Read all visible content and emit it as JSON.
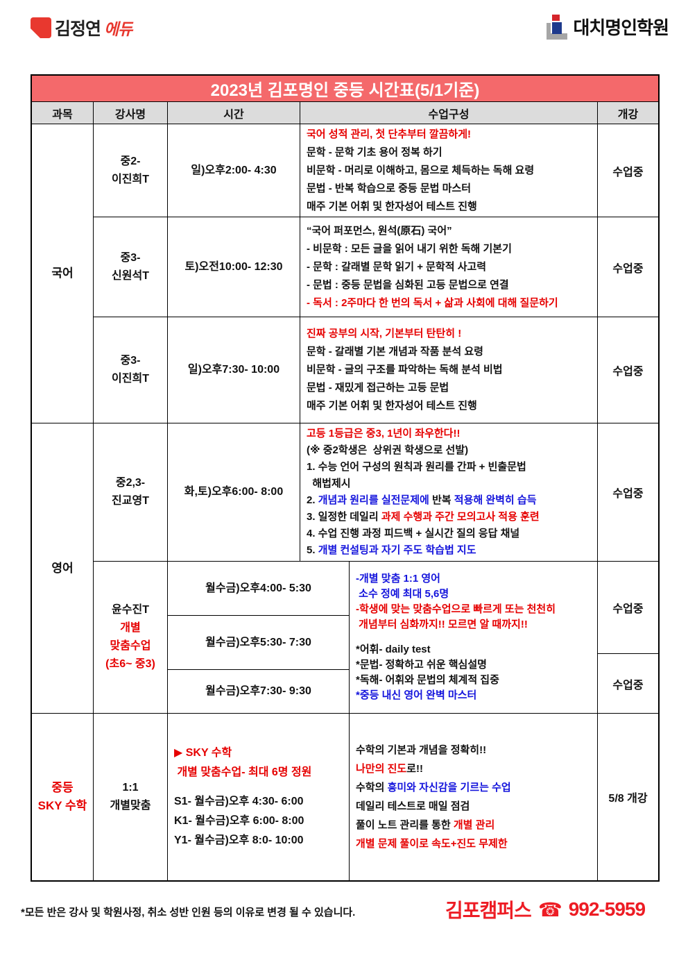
{
  "colors": {
    "text_red": "#e60000",
    "text_blue": "#1414dc",
    "title_bg": "#f4696b",
    "header_bg": "#dcdcdc",
    "logo_red": "#e8382f",
    "navy": "#1e3a8c",
    "gray": "#a6a6a6",
    "footer_red": "#ed1c24"
  },
  "logos": {
    "left": {
      "name_main": "김정연",
      "name_sub": "에듀"
    },
    "right": {
      "name": "대치명인학원"
    }
  },
  "title": "2023년 김포명인 중등 시간표(5/1기준)",
  "columns": {
    "subject": "과목",
    "teacher": "강사명",
    "time": "시간",
    "composition": "수업구성",
    "open": "개강"
  },
  "korean": {
    "subject": [
      [
        {
          "t": "국어"
        }
      ]
    ],
    "rows": [
      {
        "teacher": [
          [
            {
              "t": "중2-"
            }
          ],
          [
            {
              "t": "이진희T"
            }
          ]
        ],
        "time": [
          [
            {
              "t": "일)오후2:00- 4:30"
            }
          ]
        ],
        "comp": [
          [
            {
              "t": "국어 성적 관리, 첫 단추부터 깔끔하게!",
              "c": "red"
            }
          ],
          [
            {
              "t": "문학 - 문학 기초 용어 정복 하기"
            }
          ],
          [
            {
              "t": "비문학 - 머리로 이해하고, 몸으로 체득하는 독해 요령"
            }
          ],
          [
            {
              "t": "문법 - 반복 학습으로 중등 문법 마스터"
            }
          ],
          [
            {
              "t": "매주 기본 어휘 및 한자성어 테스트 진행"
            }
          ]
        ],
        "status": "수업중"
      },
      {
        "teacher": [
          [
            {
              "t": "중3-"
            }
          ],
          [
            {
              "t": "신원석T"
            }
          ]
        ],
        "time": [
          [
            {
              "t": "토)오전10:00- 12:30"
            }
          ]
        ],
        "comp": [
          [
            {
              "t": "“국어 퍼포먼스, 원석(原石) 국어”"
            }
          ],
          [
            {
              "t": "- 비문학 : 모든 글을 읽어 내기 위한 독해 기본기"
            }
          ],
          [
            {
              "t": "- 문학 : 갈래별 문학 읽기 + 문학적 사고력"
            }
          ],
          [
            {
              "t": "- 문법 : 중등 문법을 심화된 고등 문법으로 연결"
            }
          ],
          [
            {
              "t": "- 독서 : 2주마다 한 번의 독서 + 삶과 사회에 대해 질문하기",
              "c": "red"
            }
          ]
        ],
        "status": "수업중"
      },
      {
        "teacher": [
          [
            {
              "t": "중3-"
            }
          ],
          [
            {
              "t": "이진희T"
            }
          ]
        ],
        "time": [
          [
            {
              "t": "일)오후7:30- 10:00"
            }
          ]
        ],
        "comp": [
          [
            {
              "t": "진짜 공부의 시작, 기본부터 탄탄히 !",
              "c": "red"
            }
          ],
          [
            {
              "t": "문학 - 갈래별 기본 개념과 작품 분석 요령"
            }
          ],
          [
            {
              "t": "비문학 - 글의 구조를 파악하는 독해 분석 비법"
            }
          ],
          [
            {
              "t": "문법 - 재밌게 접근하는 고등 문법"
            }
          ],
          [
            {
              "t": "매주 기본 어휘 및 한자성어 테스트 진행"
            }
          ]
        ],
        "status": "수업중"
      }
    ]
  },
  "english": {
    "subject": [
      [
        {
          "t": "영어"
        }
      ]
    ],
    "row1": {
      "teacher": [
        [
          {
            "t": "중2,3-"
          }
        ],
        [
          {
            "t": "진교영T"
          }
        ]
      ],
      "time": [
        [
          {
            "t": "화,토)오후6:00- 8:00"
          }
        ]
      ],
      "comp": [
        [
          {
            "t": "고등 1등급은 중3, 1년이 좌우한다!!",
            "c": "red"
          }
        ],
        [
          {
            "t": "(※ 중2학생은  상위권 학생으로 선발)"
          }
        ],
        [
          {
            "t": "1. 수능 언어 구성의 원칙과 원리를 간파 + 빈출문법"
          }
        ],
        [
          {
            "t": "  해법제시"
          }
        ],
        [
          {
            "t": "2. "
          },
          {
            "t": "개념과 원리를 실전문제에",
            "c": "blue"
          },
          {
            "t": " 반복 "
          },
          {
            "t": "적용해 완벽히 습득",
            "c": "blue"
          }
        ],
        [
          {
            "t": "3. 일정한 데일리 "
          },
          {
            "t": "과제 수행과 주간 모의고사 적용 훈련",
            "c": "red"
          }
        ],
        [
          {
            "t": "4. 수업 진행 과정 피드백 + 실시간 질의 응답 채널"
          }
        ],
        [
          {
            "t": "5. "
          },
          {
            "t": "개별 컨설팅과 자기 주도 학습법 지도",
            "c": "blue"
          }
        ]
      ],
      "status": "수업중"
    },
    "yoon": {
      "teacher": [
        [
          {
            "t": "윤수진T"
          }
        ],
        [
          {
            "t": "개별",
            "c": "red"
          }
        ],
        [
          {
            "t": "맞춤수업",
            "c": "red"
          }
        ],
        [
          {
            "t": "(초6~ 중3)",
            "c": "red"
          }
        ]
      ],
      "time1": [
        [
          {
            "t": "월수금)오후4:00- 5:30"
          }
        ]
      ],
      "time2": [
        [
          {
            "t": "월수금)오후5:30- 7:30"
          }
        ]
      ],
      "time3": [
        [
          {
            "t": "월수금)오후7:30- 9:30"
          }
        ]
      ],
      "comp": [
        [
          {
            "t": "-개별 맞춤 1:1 영어",
            "c": "blue"
          }
        ],
        [
          {
            "t": " 소수 정예 최대 5,6명",
            "c": "blue"
          }
        ],
        [
          {
            "t": "-학생에 맞는 맞춤수업으로 빠르게 또는 천천히",
            "c": "red"
          }
        ],
        [
          {
            "t": " 개념부터 심화까지!! 모르면 알 때까지!!",
            "c": "red"
          }
        ],
        [],
        [
          {
            "t": "*어휘- daily test"
          }
        ],
        [
          {
            "t": "*문법- 정확하고 쉬운 핵심설명"
          }
        ],
        [
          {
            "t": "*독해- 어휘와 문법의 체계적 집중"
          }
        ],
        [
          {
            "t": "*중등 내신 영어 완벽 마스터",
            "c": "blue"
          }
        ]
      ],
      "status_a": "수업중",
      "status_b": "수업중"
    }
  },
  "math": {
    "subject": [
      [
        {
          "t": "중등",
          "c": "red"
        }
      ],
      [
        {
          "t": "SKY 수학",
          "c": "red"
        }
      ]
    ],
    "teacher": [
      [
        {
          "t": "1:1"
        }
      ],
      [
        {
          "t": "개별맞춤"
        }
      ]
    ],
    "time": [
      [
        {
          "t": "▶ SKY 수학",
          "c": "red"
        }
      ],
      [
        {
          "t": " 개별 맞춤수업- 최대 6명 정원",
          "c": "red"
        }
      ],
      [],
      [
        {
          "t": "S1- 월수금)오후 4:30- 6:00"
        }
      ],
      [
        {
          "t": "K1- 월수금)오후 6:00- 8:00"
        }
      ],
      [
        {
          "t": "Y1- 월수금)오후 8:0- 10:00"
        }
      ]
    ],
    "comp": [
      [
        {
          "t": "수학의 기본과 개념을 정확히!!"
        }
      ],
      [
        {
          "t": "나만의 진도",
          "c": "red"
        },
        {
          "t": "로!!"
        }
      ],
      [
        {
          "t": "수학의 "
        },
        {
          "t": "흥미와 자신감을 기르는 수업",
          "c": "blue"
        }
      ],
      [
        {
          "t": "데일리 테스트로 매일 점검"
        }
      ],
      [
        {
          "t": "풀이 노트 관리를 통한 "
        },
        {
          "t": "개별 관리",
          "c": "red"
        }
      ],
      [
        {
          "t": "개별 문제 풀이로 속도+진도 무제한",
          "c": "red"
        }
      ]
    ],
    "status": "5/8 개강"
  },
  "footer": {
    "note": "*모든 반은 강사 및 학원사정, 취소 성반 인원 등의 이유로 변경 될 수 있습니다.",
    "campus": "김포캠퍼스",
    "phone_icon": "☎",
    "phone": "992-5959"
  }
}
